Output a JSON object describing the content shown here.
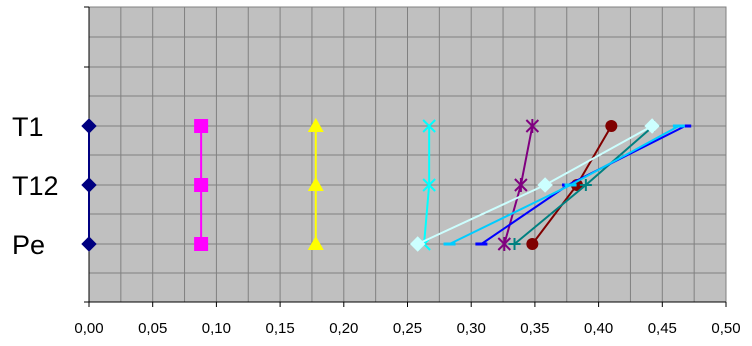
{
  "chart_data": {
    "type": "line",
    "title": "",
    "xlabel": "",
    "ylabel": "",
    "xlim": [
      0,
      0.5
    ],
    "x_tick_labels": [
      "0,00",
      "0,05",
      "0,10",
      "0,15",
      "0,20",
      "0,25",
      "0,30",
      "0,35",
      "0,40",
      "0,45",
      "0,50"
    ],
    "categories": [
      "T1",
      "T12",
      "Pe"
    ],
    "grid": true,
    "plot_background": "#c0c0c0",
    "gridline_color": "#808080",
    "legend": "none",
    "series": [
      {
        "color": "#000080",
        "marker": "diamond",
        "values": [
          0.0,
          0.0,
          0.0
        ]
      },
      {
        "color": "#ff00ff",
        "marker": "square",
        "values": [
          0.088,
          0.088,
          0.088
        ]
      },
      {
        "color": "#ffff00",
        "marker": "triangle",
        "values": [
          0.178,
          0.178,
          0.178
        ]
      },
      {
        "color": "#00ffff",
        "marker": "x",
        "values": [
          0.267,
          0.267,
          0.263
        ]
      },
      {
        "color": "#800080",
        "marker": "star",
        "values": [
          0.348,
          0.339,
          0.326
        ]
      },
      {
        "color": "#800000",
        "marker": "circle",
        "values": [
          0.41,
          0.383,
          0.348
        ]
      },
      {
        "color": "#008080",
        "marker": "cross",
        "values": [
          0.443,
          0.39,
          0.334
        ]
      },
      {
        "color": "#0000ff",
        "marker": "dash",
        "values": [
          0.468,
          0.376,
          0.308
        ]
      },
      {
        "color": "#00ccff",
        "marker": "dash",
        "values": [
          0.463,
          0.378,
          0.283
        ]
      },
      {
        "color": "#ccffff",
        "marker": "diamond",
        "values": [
          0.442,
          0.358,
          0.258
        ]
      }
    ]
  }
}
